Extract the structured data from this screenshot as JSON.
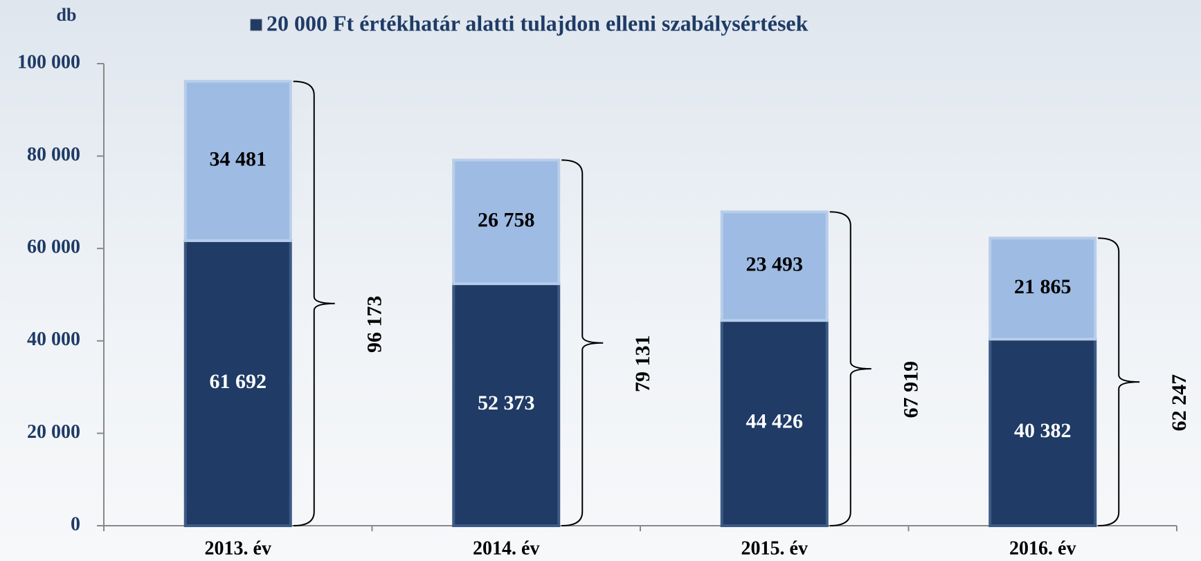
{
  "chart_data": {
    "type": "stacked-bar",
    "y_label": "db",
    "categories": [
      "2013. év",
      "2014. év",
      "2015. év",
      "2016. év"
    ],
    "series": [
      {
        "name": "20 000 Ft értékhatár alatti tulajdon elleni szabálysértések",
        "color": "#1f3b66",
        "values": [
          61692,
          52373,
          44426,
          40382
        ],
        "value_labels": [
          "61 692",
          "52 373",
          "44 426",
          "40 382"
        ]
      },
      {
        "color": "#9dbbe3",
        "values": [
          34481,
          26758,
          23493,
          21865
        ],
        "value_labels": [
          "34 481",
          "26 758",
          "23 493",
          "21 865"
        ]
      }
    ],
    "totals": [
      96173,
      79131,
      67919,
      62247
    ],
    "total_labels": [
      "96 173",
      "79 131",
      "67 919",
      "62 247"
    ],
    "ylim": [
      0,
      100000
    ],
    "yticks": [
      0,
      {
        "value": 20000,
        "label": "20 000"
      },
      {
        "value": 40000,
        "label": "40 000"
      },
      {
        "value": 60000,
        "label": "60 000"
      },
      {
        "value": 80000,
        "label": "80 000"
      },
      {
        "value": 100000,
        "label": "100 000"
      }
    ],
    "legend": "top"
  }
}
